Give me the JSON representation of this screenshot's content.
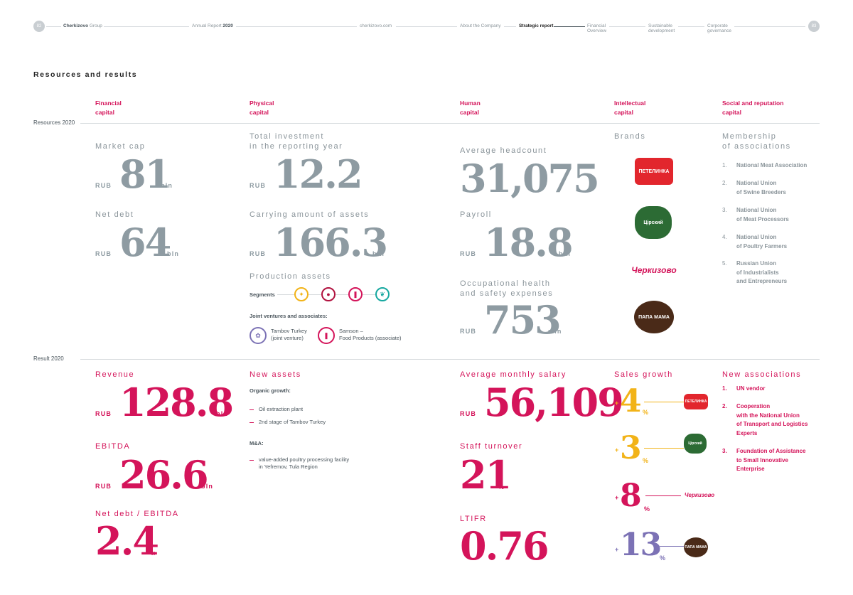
{
  "header": {
    "page_left": "82",
    "company": "Cherkizovo",
    "company_suffix": "Group",
    "report": "Annual Report",
    "report_year": "2020",
    "site": "cherkizovo.com",
    "nav": [
      "About the Company",
      "Strategic report",
      "Financial\nOverview",
      "Sustainable\ndevelopment",
      "Corporate\ngovernance"
    ],
    "page_right": "83"
  },
  "section_title": "Resources and results",
  "capitals": [
    "Financial\ncapital",
    "Physical\ncapital",
    "Human\ncapital",
    "Intellectual\ncapital",
    "Social and reputation\ncapital"
  ],
  "rows": {
    "resources": "Resources 2020",
    "result": "Result 2020"
  },
  "resources": {
    "financial": {
      "market_cap_label": "Market cap",
      "market_cap_prefix": "RUB",
      "market_cap": "81",
      "market_cap_unit": "bln",
      "net_debt_label": "Net debt",
      "net_debt_prefix": "RUB",
      "net_debt": "64",
      "net_debt_unit": "bln"
    },
    "physical": {
      "investment_label": "Total investment\nin the reporting year",
      "investment_prefix": "RUB",
      "investment": "12.2",
      "investment_unit": "bln",
      "assets_label": "Carrying amount of assets",
      "assets_prefix": "RUB",
      "assets": "166.3",
      "assets_unit": "bln",
      "production_label": "Production assets",
      "segments_label": "Segments",
      "jv_label": "Joint ventures and associates:",
      "jv_items": [
        "Tambov Turkey\n(joint venture)",
        "Samson –\nFood Products (associate)"
      ]
    },
    "human": {
      "headcount_label": "Average headcount",
      "headcount": "31,075",
      "payroll_label": "Payroll",
      "payroll_prefix": "RUB",
      "payroll": "18.8",
      "payroll_unit": "bln",
      "ohs_label": "Occupational health\nand safety expenses",
      "ohs_prefix": "RUB",
      "ohs": "753",
      "ohs_unit": "mln"
    },
    "intellectual": {
      "brands_label": "Brands"
    },
    "social": {
      "membership_label": "Membership\nof associations",
      "associations": [
        {
          "n": "1.",
          "t": "National Meat Association"
        },
        {
          "n": "2.",
          "t": "National Union\nof Swine Breeders"
        },
        {
          "n": "3.",
          "t": "National Union\nof Meat Processors"
        },
        {
          "n": "4.",
          "t": "National Union\nof Poultry Farmers"
        },
        {
          "n": "5.",
          "t": "Russian Union\nof Industrialists\nand Entrepreneurs"
        }
      ]
    }
  },
  "results": {
    "financial": {
      "revenue_label": "Revenue",
      "revenue_prefix": "RUB",
      "revenue": "128.8",
      "revenue_unit": "bln",
      "ebitda_label": "EBITDA",
      "ebitda_prefix": "RUB",
      "ebitda": "26.6",
      "ebitda_unit": "bln",
      "ratio_label": "Net debt / EBITDA",
      "ratio": "2.4",
      "ratio_unit": "x"
    },
    "physical": {
      "new_assets_label": "New assets",
      "organic_label": "Organic growth:",
      "organic_items": [
        "Oil extraction plant",
        "2nd stage of Tambov Turkey"
      ],
      "ma_label": "M&A:",
      "ma_items": [
        "value-added poultry processing facility\nin Yefremov, Tula Region"
      ]
    },
    "human": {
      "salary_label": "Average monthly salary",
      "salary_prefix": "RUB",
      "salary": "56,109",
      "turnover_label": "Staff turnover",
      "turnover": "21",
      "turnover_unit": "%",
      "ltifr_label": "LTIFR",
      "ltifr": "0.76"
    },
    "intellectual": {
      "sales_growth_label": "Sales growth",
      "growth": [
        {
          "plus": "+",
          "value": "4",
          "unit": "%",
          "color": "#f2b318",
          "brand": "ПЕТЕЛИНКА"
        },
        {
          "plus": "+",
          "value": "3",
          "unit": "%",
          "color": "#f2b318",
          "brand": "Цiрский"
        },
        {
          "plus": "+",
          "value": "8",
          "unit": "%",
          "color": "#d4145a",
          "brand": "Черкизово"
        },
        {
          "plus": "+",
          "value": "13",
          "unit": "%",
          "color": "#7c72b5",
          "brand": "ПАПА МАМА"
        }
      ]
    },
    "social": {
      "new_associations_label": "New associations",
      "items": [
        {
          "n": "1.",
          "t": "UN vendor"
        },
        {
          "n": "2.",
          "t": "Cooperation\nwith the National Union\nof Transport and Logistics\nExperts"
        },
        {
          "n": "3.",
          "t": "Foundation of Assistance\nto Small Innovative\nEnterprise"
        }
      ]
    }
  },
  "brands": [
    "ПЕТЕЛИНКА",
    "Цiрский",
    "Черкизово",
    "ПАПА МАМА"
  ],
  "colors": {
    "accent": "#d4145a",
    "grey": "#8e9ba2",
    "yellow": "#f2b318",
    "purple": "#7c72b5",
    "teal": "#17a8a0"
  }
}
